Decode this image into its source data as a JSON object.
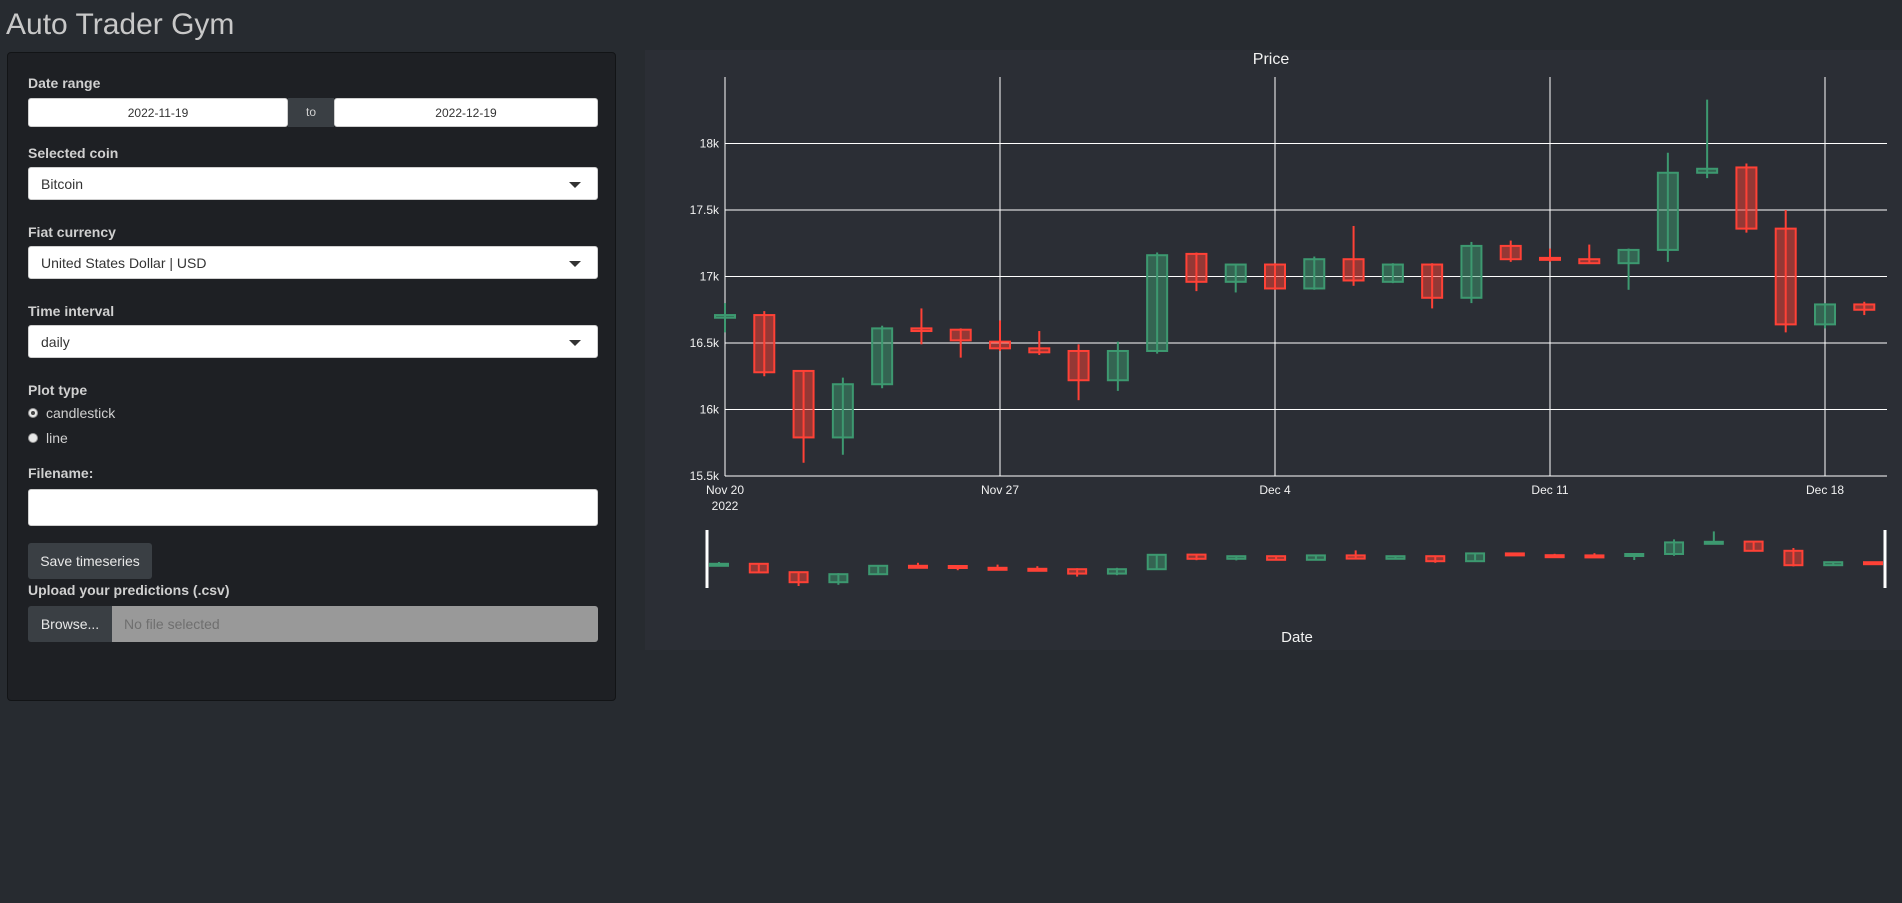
{
  "app": {
    "title": "Auto Trader Gym"
  },
  "sidebar": {
    "date_range": {
      "label": "Date range",
      "start": "2022-11-19",
      "separator": "to",
      "end": "2022-12-19"
    },
    "coin": {
      "label": "Selected coin",
      "value": "Bitcoin"
    },
    "fiat": {
      "label": "Fiat currency",
      "value": "United States Dollar | USD"
    },
    "interval": {
      "label": "Time interval",
      "value": "daily"
    },
    "plot_type": {
      "label": "Plot type",
      "options": [
        {
          "label": "candlestick",
          "checked": true
        },
        {
          "label": "line",
          "checked": false
        }
      ]
    },
    "filename": {
      "label": "Filename:",
      "value": ""
    },
    "save_button": "Save timeseries",
    "upload": {
      "label": "Upload your predictions (.csv)",
      "browse": "Browse...",
      "placeholder": "No file selected"
    }
  },
  "chart_data": {
    "type": "candlestick",
    "title": "Price",
    "xlabel": "Date",
    "ylabel": "",
    "ylim": [
      15500,
      18500
    ],
    "yticks": [
      15500,
      16000,
      16500,
      17000,
      17500,
      18000
    ],
    "ytick_labels": [
      "15.5k",
      "16k",
      "16.5k",
      "17k",
      "17.5k",
      "18k"
    ],
    "xticks": [
      {
        "date": "2022-11-20",
        "label": "Nov 20",
        "sublabel": "2022"
      },
      {
        "date": "2022-11-27",
        "label": "Nov 27",
        "sublabel": ""
      },
      {
        "date": "2022-12-04",
        "label": "Dec 4",
        "sublabel": ""
      },
      {
        "date": "2022-12-11",
        "label": "Dec 11",
        "sublabel": ""
      },
      {
        "date": "2022-12-18",
        "label": "Dec 18",
        "sublabel": ""
      }
    ],
    "xrange": [
      "2022-11-20",
      "2022-12-19"
    ],
    "grid": true,
    "colors": {
      "up": "#3d9970",
      "down": "#ff4136"
    },
    "candles": [
      {
        "date": "2022-11-20",
        "open": 16690,
        "high": 16800,
        "low": 16580,
        "close": 16710
      },
      {
        "date": "2022-11-21",
        "open": 16710,
        "high": 16740,
        "low": 16250,
        "close": 16280
      },
      {
        "date": "2022-11-22",
        "open": 16290,
        "high": 16290,
        "low": 15600,
        "close": 15790
      },
      {
        "date": "2022-11-23",
        "open": 15790,
        "high": 16240,
        "low": 15660,
        "close": 16190
      },
      {
        "date": "2022-11-24",
        "open": 16190,
        "high": 16630,
        "low": 16160,
        "close": 16610
      },
      {
        "date": "2022-11-25",
        "open": 16610,
        "high": 16760,
        "low": 16490,
        "close": 16590
      },
      {
        "date": "2022-11-26",
        "open": 16600,
        "high": 16610,
        "low": 16390,
        "close": 16520
      },
      {
        "date": "2022-11-27",
        "open": 16510,
        "high": 16670,
        "low": 16440,
        "close": 16460
      },
      {
        "date": "2022-11-28",
        "open": 16460,
        "high": 16590,
        "low": 16410,
        "close": 16430
      },
      {
        "date": "2022-11-29",
        "open": 16440,
        "high": 16490,
        "low": 16070,
        "close": 16220
      },
      {
        "date": "2022-11-30",
        "open": 16220,
        "high": 16510,
        "low": 16140,
        "close": 16440
      },
      {
        "date": "2022-12-01",
        "open": 16440,
        "high": 17180,
        "low": 16420,
        "close": 17160
      },
      {
        "date": "2022-12-02",
        "open": 17170,
        "high": 17180,
        "low": 16890,
        "close": 16960
      },
      {
        "date": "2022-12-03",
        "open": 16960,
        "high": 17090,
        "low": 16880,
        "close": 17090
      },
      {
        "date": "2022-12-04",
        "open": 17090,
        "high": 17100,
        "low": 16900,
        "close": 16910
      },
      {
        "date": "2022-12-05",
        "open": 16910,
        "high": 17150,
        "low": 16900,
        "close": 17130
      },
      {
        "date": "2022-12-06",
        "open": 17130,
        "high": 17380,
        "low": 16930,
        "close": 16970
      },
      {
        "date": "2022-12-07",
        "open": 16960,
        "high": 17100,
        "low": 16950,
        "close": 17090
      },
      {
        "date": "2022-12-08",
        "open": 17090,
        "high": 17100,
        "low": 16760,
        "close": 16840
      },
      {
        "date": "2022-12-09",
        "open": 16840,
        "high": 17260,
        "low": 16800,
        "close": 17230
      },
      {
        "date": "2022-12-10",
        "open": 17230,
        "high": 17270,
        "low": 17110,
        "close": 17130
      },
      {
        "date": "2022-12-11",
        "open": 17140,
        "high": 17210,
        "low": 17110,
        "close": 17130
      },
      {
        "date": "2022-12-12",
        "open": 17130,
        "high": 17240,
        "low": 17100,
        "close": 17100
      },
      {
        "date": "2022-12-13",
        "open": 17100,
        "high": 17210,
        "low": 16900,
        "close": 17200
      },
      {
        "date": "2022-12-14",
        "open": 17200,
        "high": 17930,
        "low": 17110,
        "close": 17780
      },
      {
        "date": "2022-12-15",
        "open": 17780,
        "high": 18330,
        "low": 17740,
        "close": 17810
      },
      {
        "date": "2022-12-16",
        "open": 17820,
        "high": 17850,
        "low": 17330,
        "close": 17360
      },
      {
        "date": "2022-12-17",
        "open": 17360,
        "high": 17500,
        "low": 16580,
        "close": 16640
      },
      {
        "date": "2022-12-18",
        "open": 16640,
        "high": 16800,
        "low": 16610,
        "close": 16790
      },
      {
        "date": "2022-12-19",
        "open": 16790,
        "high": 16810,
        "low": 16710,
        "close": 16750
      }
    ]
  }
}
